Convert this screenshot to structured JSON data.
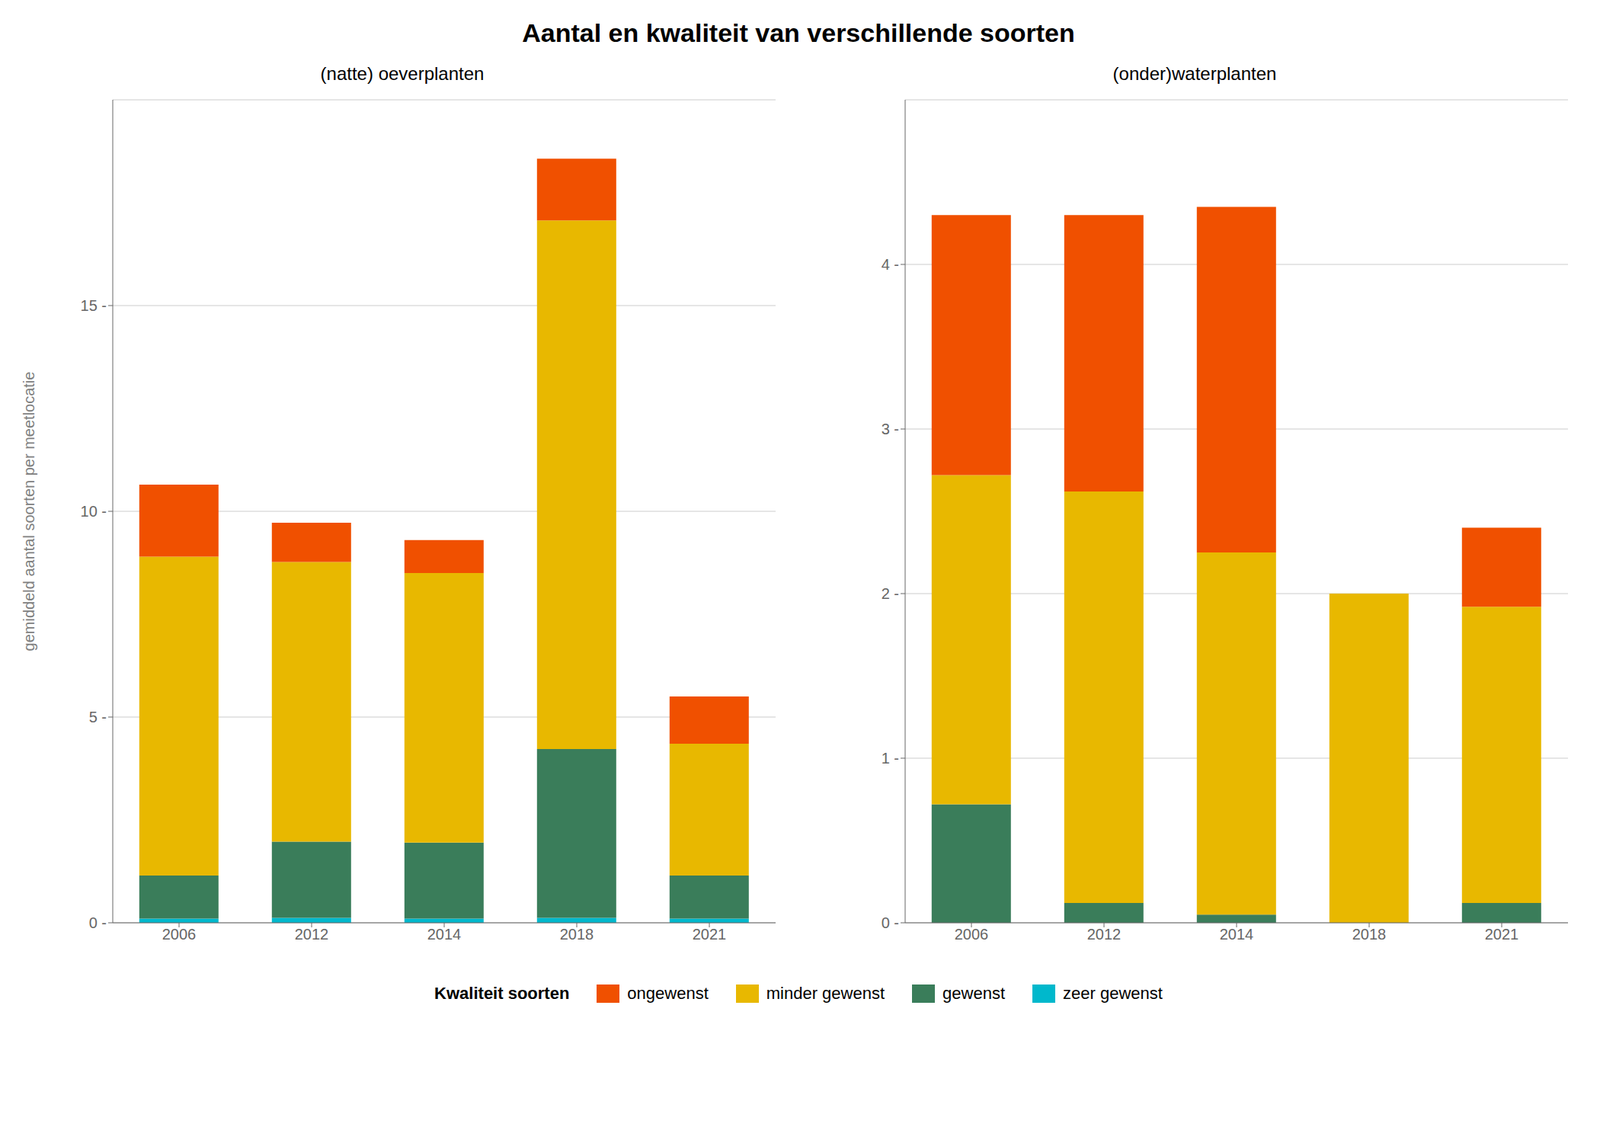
{
  "title": "Aantal en kwaliteit van verschillende soorten",
  "legend_title": "Kwaliteit soorten",
  "chart_data": [
    {
      "type": "bar",
      "subtitle": "(natte) oeverplanten",
      "ylabel": "gemiddeld aantal soorten per meetlocatie",
      "categories": [
        "2006",
        "2012",
        "2014",
        "2018",
        "2021"
      ],
      "stacked": true,
      "grid": true,
      "ylim": [
        0,
        20
      ],
      "yticks": [
        {
          "value": 0,
          "label": "0 -"
        },
        {
          "value": 5,
          "label": "5 -"
        },
        {
          "value": 10,
          "label": "10 -"
        },
        {
          "value": 15,
          "label": "15 -"
        }
      ],
      "series": [
        {
          "name": "zeer gewenst",
          "color": "#00B8CC",
          "values": [
            0.1,
            0.12,
            0.1,
            0.12,
            0.1
          ]
        },
        {
          "name": "gewenst",
          "color": "#3A7D5A",
          "values": [
            1.05,
            1.85,
            1.85,
            4.1,
            1.05
          ]
        },
        {
          "name": "minder gewenst",
          "color": "#E8B800",
          "values": [
            7.75,
            6.8,
            6.55,
            12.85,
            3.2
          ]
        },
        {
          "name": "ongewenst",
          "color": "#F05000",
          "values": [
            1.75,
            0.95,
            0.8,
            1.5,
            1.15
          ]
        }
      ]
    },
    {
      "type": "bar",
      "subtitle": "(onder)waterplanten",
      "categories": [
        "2006",
        "2012",
        "2014",
        "2018",
        "2021"
      ],
      "stacked": true,
      "grid": true,
      "ylim": [
        0,
        5.0
      ],
      "yticks": [
        {
          "value": 0,
          "label": "0 -"
        },
        {
          "value": 1,
          "label": "1 -"
        },
        {
          "value": 2,
          "label": "2 -"
        },
        {
          "value": 3,
          "label": "3 -"
        },
        {
          "value": 4,
          "label": "4 -"
        }
      ],
      "series": [
        {
          "name": "zeer gewenst",
          "color": "#00B8CC",
          "values": [
            0.0,
            0.0,
            0.0,
            0.0,
            0.0
          ]
        },
        {
          "name": "gewenst",
          "color": "#3A7D5A",
          "values": [
            0.72,
            0.12,
            0.05,
            0.0,
            0.12
          ]
        },
        {
          "name": "minder gewenst",
          "color": "#E8B800",
          "values": [
            2.0,
            2.5,
            2.2,
            2.0,
            1.8
          ]
        },
        {
          "name": "ongewenst",
          "color": "#F05000",
          "values": [
            1.58,
            1.68,
            2.1,
            0.0,
            0.48
          ]
        }
      ]
    }
  ]
}
